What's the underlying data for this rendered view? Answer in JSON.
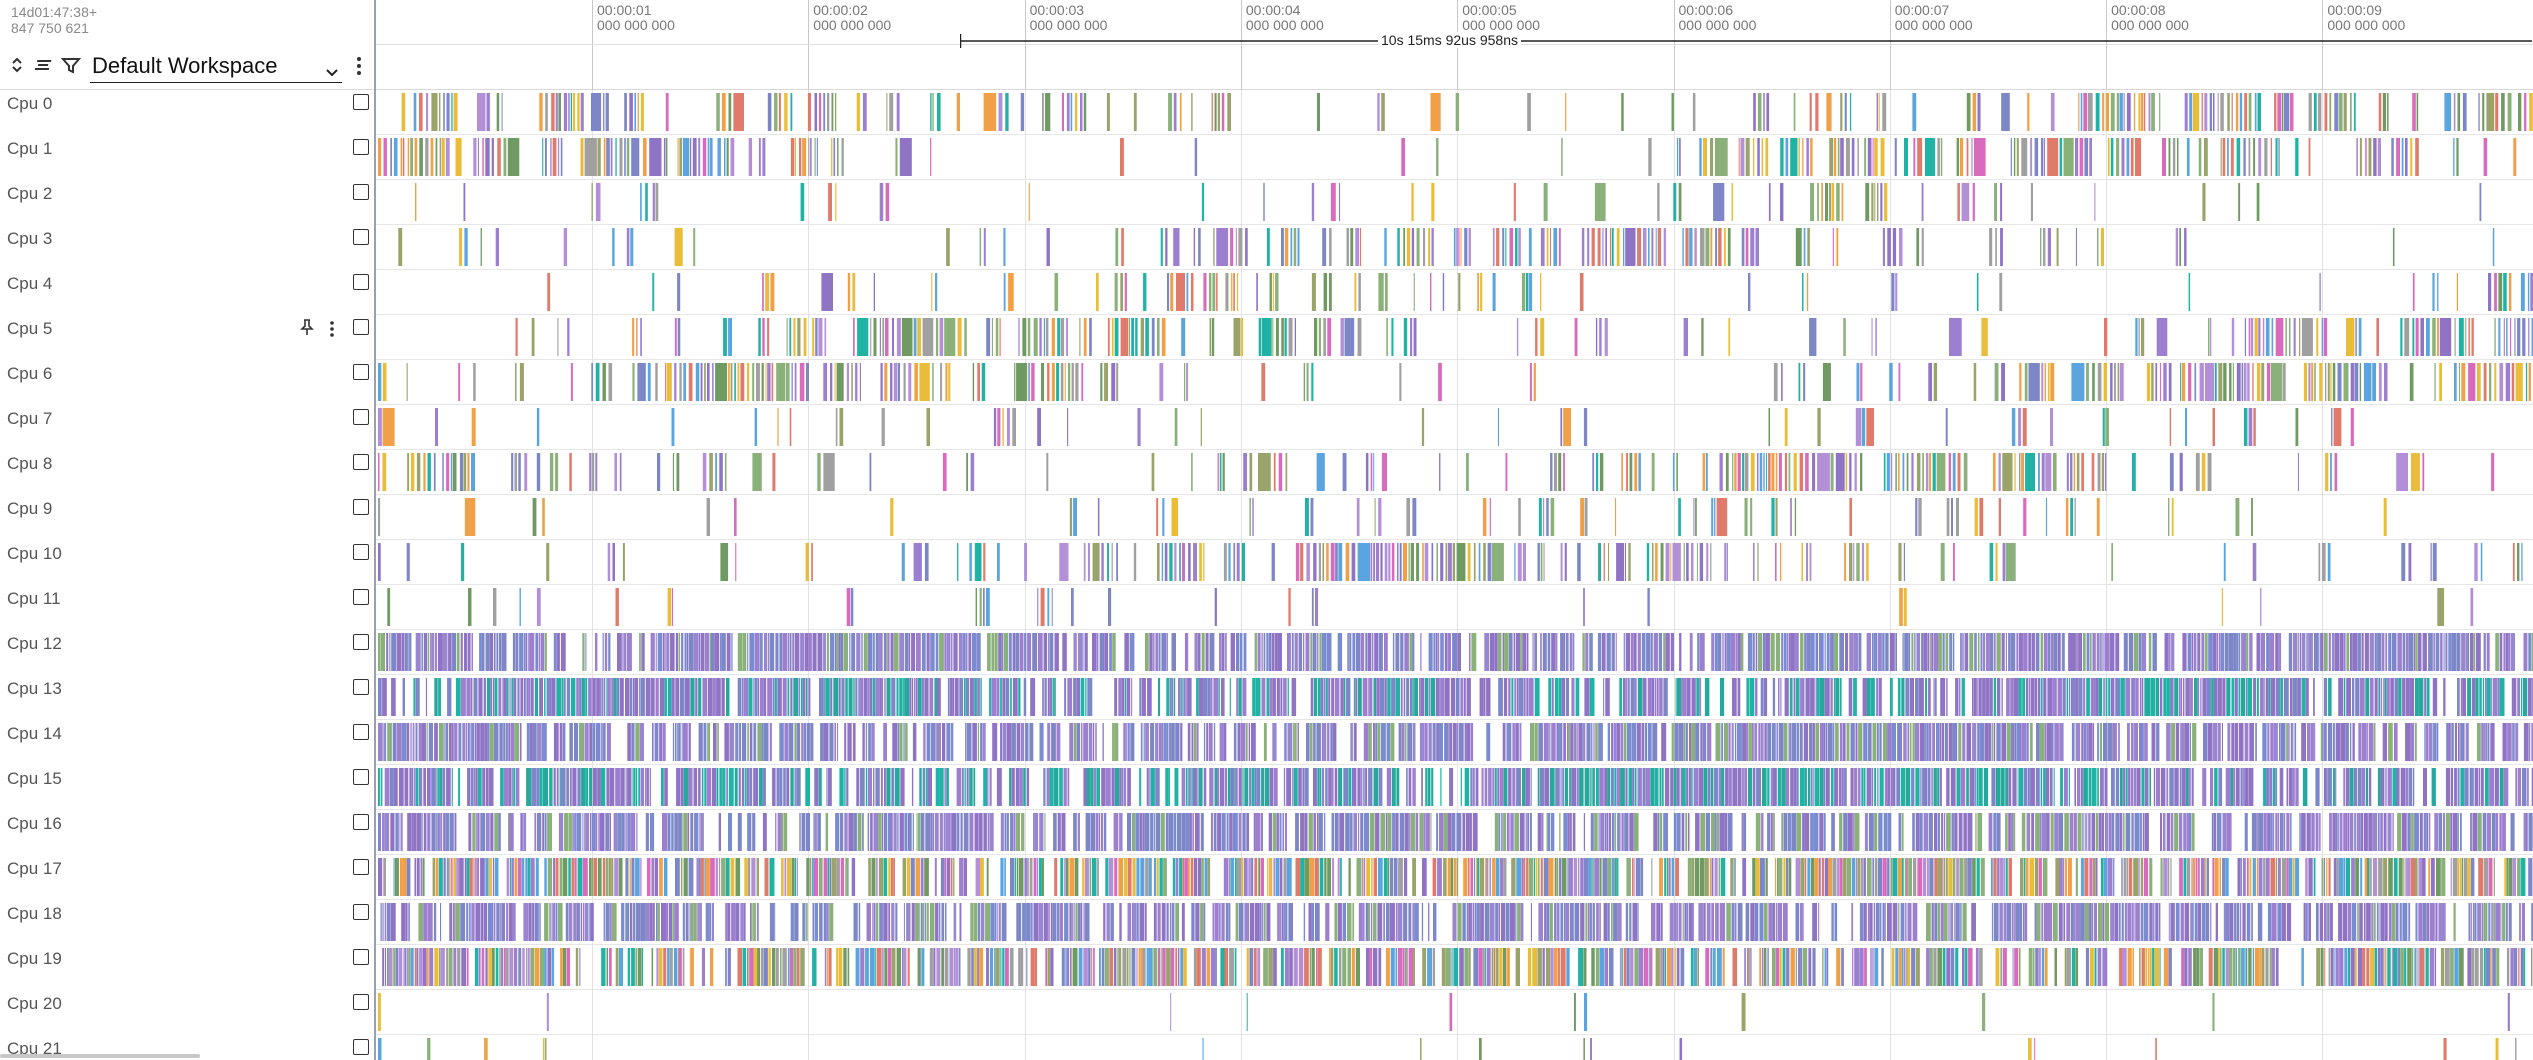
{
  "header": {
    "timestamp_top": "14d01:47:38+",
    "timestamp_bottom": "847 750 621",
    "workspace": {
      "label": "Default Workspace"
    },
    "icons": {
      "expand_collapse": "expand-collapse-icon",
      "collapse_all": "collapse-all-icon",
      "filter": "filter-icon",
      "more": "more-vert-icon"
    }
  },
  "time_axis": {
    "ticks": [
      {
        "label": "00:00:01",
        "sub": "000 000 000"
      },
      {
        "label": "00:00:02",
        "sub": "000 000 000"
      },
      {
        "label": "00:00:03",
        "sub": "000 000 000"
      },
      {
        "label": "00:00:04",
        "sub": "000 000 000"
      },
      {
        "label": "00:00:05",
        "sub": "000 000 000"
      },
      {
        "label": "00:00:06",
        "sub": "000 000 000"
      },
      {
        "label": "00:00:07",
        "sub": "000 000 000"
      },
      {
        "label": "00:00:08",
        "sub": "000 000 000"
      },
      {
        "label": "00:00:09",
        "sub": "000 000 000"
      }
    ],
    "span_label": "10s 15ms 92us 958ns"
  },
  "tracks": [
    {
      "name": "Cpu 0"
    },
    {
      "name": "Cpu 1"
    },
    {
      "name": "Cpu 2"
    },
    {
      "name": "Cpu 3"
    },
    {
      "name": "Cpu 4"
    },
    {
      "name": "Cpu 5",
      "pinned_controls": true
    },
    {
      "name": "Cpu 6"
    },
    {
      "name": "Cpu 7"
    },
    {
      "name": "Cpu 8"
    },
    {
      "name": "Cpu 9"
    },
    {
      "name": "Cpu 10"
    },
    {
      "name": "Cpu 11"
    },
    {
      "name": "Cpu 12"
    },
    {
      "name": "Cpu 13"
    },
    {
      "name": "Cpu 14"
    },
    {
      "name": "Cpu 15"
    },
    {
      "name": "Cpu 16"
    },
    {
      "name": "Cpu 17"
    },
    {
      "name": "Cpu 18"
    },
    {
      "name": "Cpu 19"
    },
    {
      "name": "Cpu 20"
    },
    {
      "name": "Cpu 21"
    }
  ],
  "track_icons": {
    "pin": "pin-icon",
    "menu": "more-vert-icon"
  },
  "colors": {
    "palette": [
      "#8f73c4",
      "#9d7fd0",
      "#7d86c7",
      "#8bb17a",
      "#e9bd3a",
      "#20b2a4",
      "#5aa4e0",
      "#e07a6a",
      "#b38fd8",
      "#9aa36a",
      "#d86bbd",
      "#f0a046",
      "#a0a0a0",
      "#6f9a61"
    ],
    "dense_12_14": [
      "#7d86c7",
      "#8f73c4",
      "#7a8bd0",
      "#9a86d0"
    ],
    "dense_13_15": [
      "#20b2a4",
      "#7d86c7",
      "#8f73c4",
      "#26a99c"
    ],
    "track_divider": "#9aa0b4"
  }
}
